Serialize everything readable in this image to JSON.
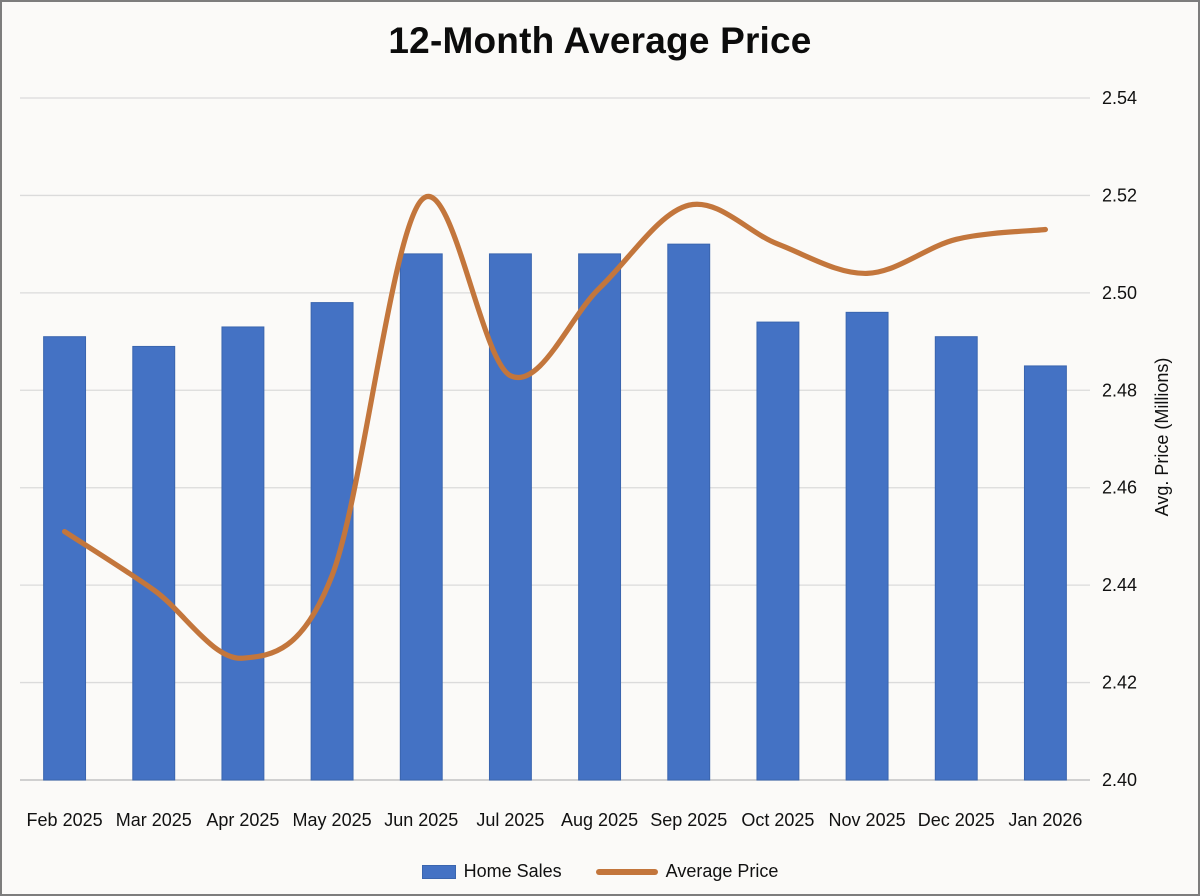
{
  "title": "12-Month Average Price",
  "legend": {
    "home_sales_label": "Home Sales",
    "average_price_label": "Average Price"
  },
  "colors": {
    "bar": "#4472c4",
    "bar_edge": "#3a65ae",
    "line": "#c3763c",
    "gridline": "#dbdbdb",
    "axis_line": "#c2c2c2",
    "text": "#111111",
    "background": "#fbfaf8"
  },
  "chart_data": {
    "type": "bar",
    "subtype": "combo-bar-line",
    "title": "12-Month Average Price",
    "categories": [
      "Feb 2025",
      "Mar 2025",
      "Apr 2025",
      "May 2025",
      "Jun 2025",
      "Jul 2025",
      "Aug 2025",
      "Sep 2025",
      "Oct 2025",
      "Nov 2025",
      "Dec 2025",
      "Jan 2026"
    ],
    "series": [
      {
        "name": "Home Sales",
        "type": "bar",
        "axis": "hidden",
        "note": "left axis not rendered in image; values are bar-top positions read on the visible right price axis",
        "values": [
          2.491,
          2.489,
          2.493,
          2.498,
          2.508,
          2.508,
          2.508,
          2.51,
          2.494,
          2.496,
          2.491,
          2.485
        ]
      },
      {
        "name": "Average Price",
        "type": "line",
        "axis": "right",
        "smooth": true,
        "values": [
          2.451,
          2.439,
          2.425,
          2.442,
          2.519,
          2.483,
          2.501,
          2.518,
          2.51,
          2.504,
          2.511,
          2.513
        ]
      }
    ],
    "right_axis": {
      "title": "Avg. Price (Millions)",
      "min": 2.4,
      "max": 2.54,
      "tick_step": 0.02,
      "tick_labels": [
        "2.40",
        "2.42",
        "2.44",
        "2.46",
        "2.48",
        "2.50",
        "2.52",
        "2.54"
      ]
    },
    "xlabel": "",
    "ylabel": "Avg. Price (Millions)",
    "ylim": [
      2.4,
      2.54
    ],
    "grid": "horizontal",
    "legend_position": "bottom"
  }
}
